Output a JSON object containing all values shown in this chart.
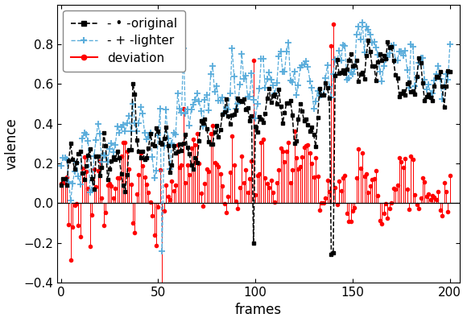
{
  "title": "",
  "xlabel": "frames",
  "ylabel": "valence",
  "xlim": [
    -2,
    205
  ],
  "ylim": [
    -0.4,
    1.0
  ],
  "yticks": [
    -0.4,
    -0.2,
    0.0,
    0.2,
    0.4,
    0.6,
    0.8
  ],
  "xticks": [
    0,
    50,
    100,
    150,
    200
  ],
  "original_color": "#000000",
  "lighter_color": "#5aaddb",
  "deviation_color": "#ff0000",
  "seed": 12345
}
